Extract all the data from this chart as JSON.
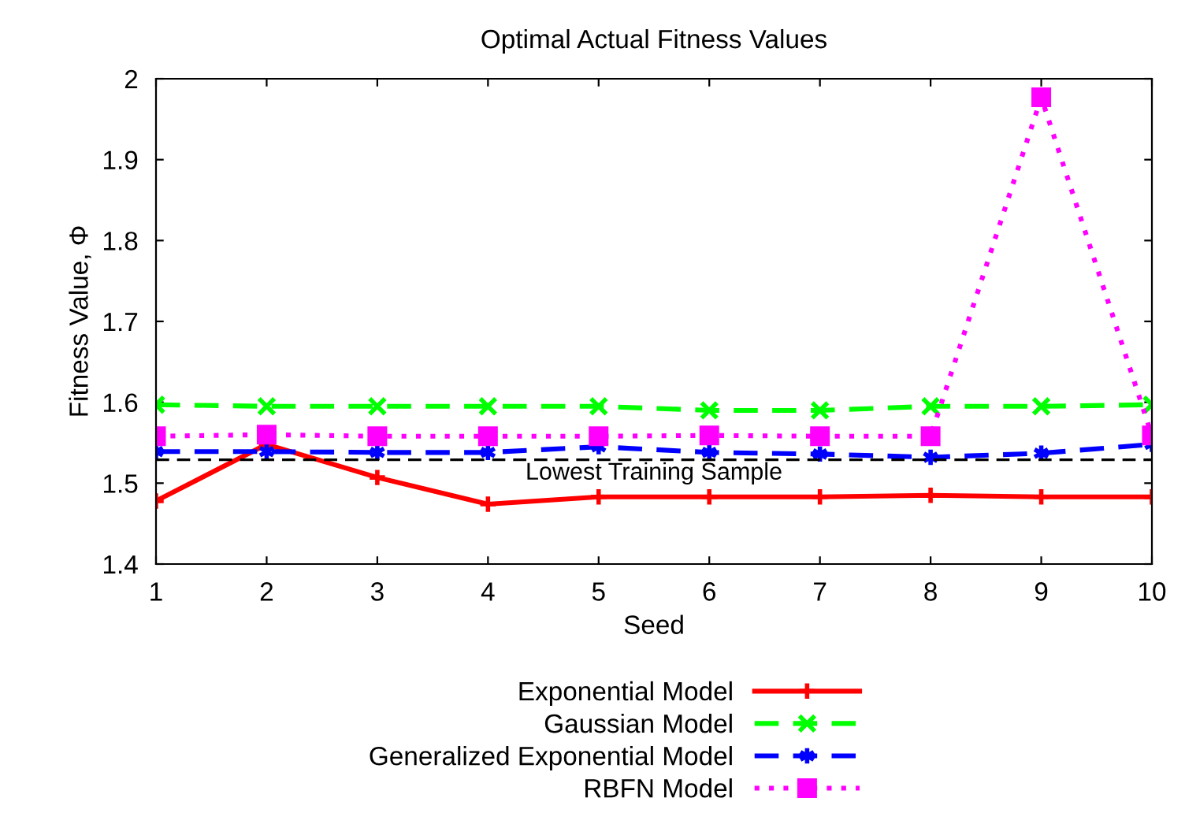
{
  "chart_data": {
    "type": "line",
    "title": "Optimal Actual Fitness Values",
    "xlabel": "Seed",
    "ylabel": "Fitness Value, Φ",
    "x": [
      1,
      2,
      3,
      4,
      5,
      6,
      7,
      8,
      9,
      10
    ],
    "xlim": [
      1,
      10
    ],
    "xticks": [
      1,
      2,
      3,
      4,
      5,
      6,
      7,
      8,
      9,
      10
    ],
    "ylim": [
      1.4,
      2
    ],
    "yticks": [
      1.4,
      1.5,
      1.6,
      1.7,
      1.8,
      1.9,
      2
    ],
    "series": [
      {
        "name": "Exponential Model",
        "color": "#ff0000",
        "line_style": "solid",
        "marker": "plus",
        "values": [
          1.478,
          1.548,
          1.507,
          1.474,
          1.483,
          1.483,
          1.483,
          1.485,
          1.483,
          1.483
        ]
      },
      {
        "name": "Gaussian Model",
        "color": "#00ff00",
        "line_style": "dashed",
        "marker": "x",
        "values": [
          1.597,
          1.595,
          1.595,
          1.595,
          1.595,
          1.59,
          1.59,
          1.595,
          1.595,
          1.597
        ]
      },
      {
        "name": "Generalized Exponential Model",
        "color": "#0000ff",
        "line_style": "dashed",
        "marker": "cross",
        "values": [
          1.539,
          1.539,
          1.538,
          1.538,
          1.545,
          1.538,
          1.536,
          1.532,
          1.537,
          1.548
        ]
      },
      {
        "name": "RBFN Model",
        "color": "#ff00ff",
        "line_style": "dotted",
        "marker": "square",
        "values": [
          1.558,
          1.56,
          1.558,
          1.558,
          1.558,
          1.559,
          1.558,
          1.558,
          1.977,
          1.559
        ]
      }
    ],
    "ref_lines": [
      {
        "axis": "y",
        "value": 1.529,
        "label": "Lowest Training Sample",
        "color": "#000000",
        "line_style": "dashed"
      }
    ],
    "grid": false,
    "legend": "bottom"
  }
}
